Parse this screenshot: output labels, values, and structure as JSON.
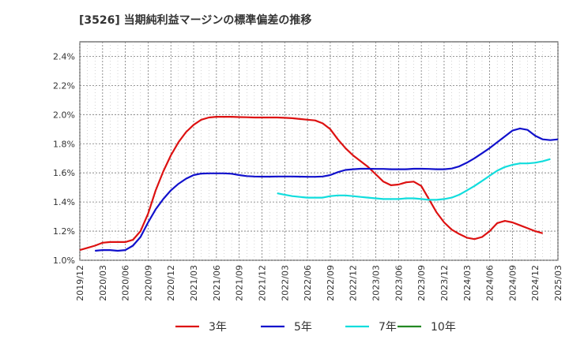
{
  "chart_data": {
    "type": "line",
    "title": "[3526]  当期純利益マージンの標準偏差の推移",
    "xlabel": "",
    "ylabel": "",
    "ylim": [
      1.0,
      2.5
    ],
    "y_ticks": [
      "1.0%",
      "1.2%",
      "1.4%",
      "1.6%",
      "1.8%",
      "2.0%",
      "2.2%",
      "2.4%"
    ],
    "y_tick_values": [
      1.0,
      1.2,
      1.4,
      1.6,
      1.8,
      2.0,
      2.2,
      2.4
    ],
    "x_ticks": [
      "2019/12",
      "2020/03",
      "2020/06",
      "2020/09",
      "2020/12",
      "2021/03",
      "2021/06",
      "2021/09",
      "2021/12",
      "2022/03",
      "2022/06",
      "2022/09",
      "2022/12",
      "2023/03",
      "2023/06",
      "2023/09",
      "2023/12",
      "2024/03",
      "2024/06",
      "2024/09",
      "2024/12",
      "2025/03"
    ],
    "x_range_months": [
      0,
      63
    ],
    "grid": true,
    "legend_position": "bottom",
    "series": [
      {
        "name": "3年",
        "color": "#dd1111",
        "start_month": 0,
        "values": [
          1.07,
          1.085,
          1.1,
          1.12,
          1.125,
          1.125,
          1.125,
          1.14,
          1.2,
          1.32,
          1.48,
          1.61,
          1.72,
          1.81,
          1.88,
          1.93,
          1.965,
          1.98,
          1.985,
          1.985,
          1.985,
          1.983,
          1.982,
          1.98,
          1.98,
          1.98,
          1.98,
          1.978,
          1.975,
          1.97,
          1.965,
          1.96,
          1.94,
          1.9,
          1.83,
          1.77,
          1.72,
          1.68,
          1.64,
          1.59,
          1.54,
          1.515,
          1.52,
          1.535,
          1.54,
          1.51,
          1.42,
          1.33,
          1.26,
          1.21,
          1.18,
          1.155,
          1.145,
          1.16,
          1.2,
          1.255,
          1.27,
          1.26,
          1.24,
          1.22,
          1.2,
          1.185
        ]
      },
      {
        "name": "5年",
        "color": "#1111cc",
        "start_month": 2,
        "values": [
          1.065,
          1.07,
          1.07,
          1.065,
          1.07,
          1.1,
          1.16,
          1.26,
          1.35,
          1.42,
          1.48,
          1.525,
          1.56,
          1.585,
          1.595,
          1.597,
          1.597,
          1.597,
          1.594,
          1.585,
          1.578,
          1.575,
          1.574,
          1.574,
          1.575,
          1.575,
          1.575,
          1.574,
          1.573,
          1.573,
          1.575,
          1.585,
          1.605,
          1.62,
          1.625,
          1.628,
          1.628,
          1.627,
          1.627,
          1.625,
          1.625,
          1.625,
          1.628,
          1.628,
          1.627,
          1.625,
          1.625,
          1.63,
          1.645,
          1.67,
          1.7,
          1.735,
          1.77,
          1.81,
          1.85,
          1.89,
          1.905,
          1.895,
          1.855,
          1.83,
          1.825,
          1.83
        ]
      },
      {
        "name": "7年",
        "color": "#11dddd",
        "start_month": 26,
        "values": [
          1.46,
          1.45,
          1.44,
          1.435,
          1.43,
          1.43,
          1.43,
          1.44,
          1.445,
          1.445,
          1.44,
          1.435,
          1.43,
          1.425,
          1.42,
          1.42,
          1.42,
          1.425,
          1.425,
          1.42,
          1.415,
          1.415,
          1.42,
          1.43,
          1.45,
          1.48,
          1.51,
          1.545,
          1.58,
          1.615,
          1.64,
          1.655,
          1.665,
          1.665,
          1.67,
          1.68,
          1.695
        ]
      },
      {
        "name": "10年",
        "color": "#228822",
        "start_month": 0,
        "values": []
      }
    ]
  }
}
